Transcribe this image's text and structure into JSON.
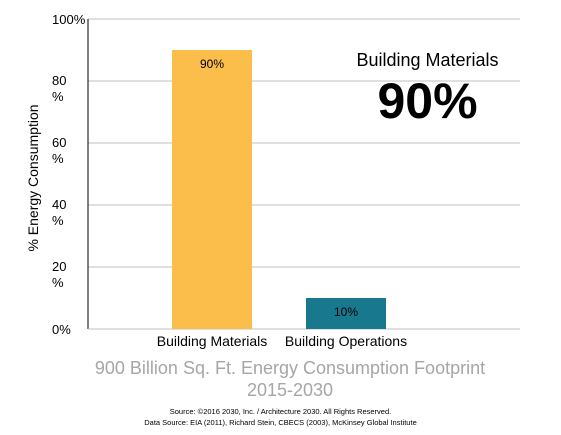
{
  "chart_data": {
    "type": "bar",
    "categories": [
      "Building Materials",
      "Building Operations"
    ],
    "values": [
      90,
      10
    ],
    "data_labels": [
      "90%",
      "10%"
    ],
    "colors": [
      "#fbbe4b",
      "#17788e"
    ],
    "ylabel": "% Energy Consumption",
    "ylim": [
      0,
      100
    ],
    "yticks": [
      {
        "value": 0,
        "label": "0%"
      },
      {
        "value": 20,
        "label": "20 %"
      },
      {
        "value": 40,
        "label": "40 %"
      },
      {
        "value": 60,
        "label": "60 %"
      },
      {
        "value": 80,
        "label": "80 %"
      },
      {
        "value": 100,
        "label": "100%"
      }
    ],
    "grid": true
  },
  "callout": {
    "label": "Building Materials",
    "value": "90%"
  },
  "subtitle": {
    "line1": "900 Billion Sq. Ft. Energy Consumption Footprint",
    "line2": "2015-2030"
  },
  "source": {
    "line1": "Source: ©2016 2030, Inc. / Architecture 2030. All Rights Reserved.",
    "line2": "Data Source: EIA (2011), Richard Stein, CBECS (2003), McKinsey Global Institute"
  }
}
